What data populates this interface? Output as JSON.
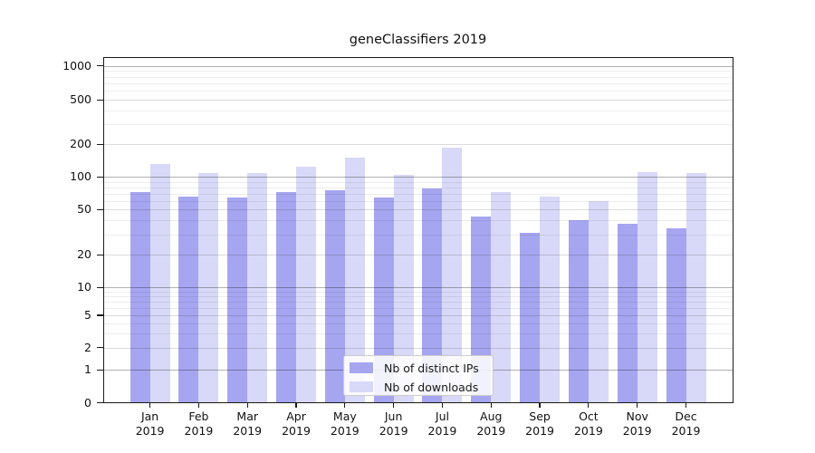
{
  "chart_data": {
    "type": "bar",
    "title": "geneClassifiers 2019",
    "categories": [
      "Jan",
      "Feb",
      "Mar",
      "Apr",
      "May",
      "Jun",
      "Jul",
      "Aug",
      "Sep",
      "Oct",
      "Nov",
      "Dec"
    ],
    "year": "2019",
    "series": [
      {
        "name": "Nb of distinct IPs",
        "color": "#a5a5f0",
        "values": [
          72,
          65,
          64,
          73,
          75,
          64,
          78,
          43,
          31,
          40,
          37,
          34
        ]
      },
      {
        "name": "Nb of downloads",
        "color": "#d8d8f8",
        "values": [
          132,
          108,
          109,
          125,
          149,
          104,
          186,
          73,
          65,
          60,
          110,
          108
        ]
      }
    ],
    "yscale": "symlog",
    "y_ticks": [
      0,
      1,
      2,
      5,
      10,
      20,
      50,
      100,
      200,
      500,
      1000
    ],
    "ylim": [
      0,
      1200
    ],
    "grid": true,
    "legend_position": "lower-center",
    "colors": {
      "axis": "#1a1a1a",
      "grid_major": "#b3b3b3",
      "grid_minor": "#ececec",
      "background": "#ffffff"
    }
  }
}
